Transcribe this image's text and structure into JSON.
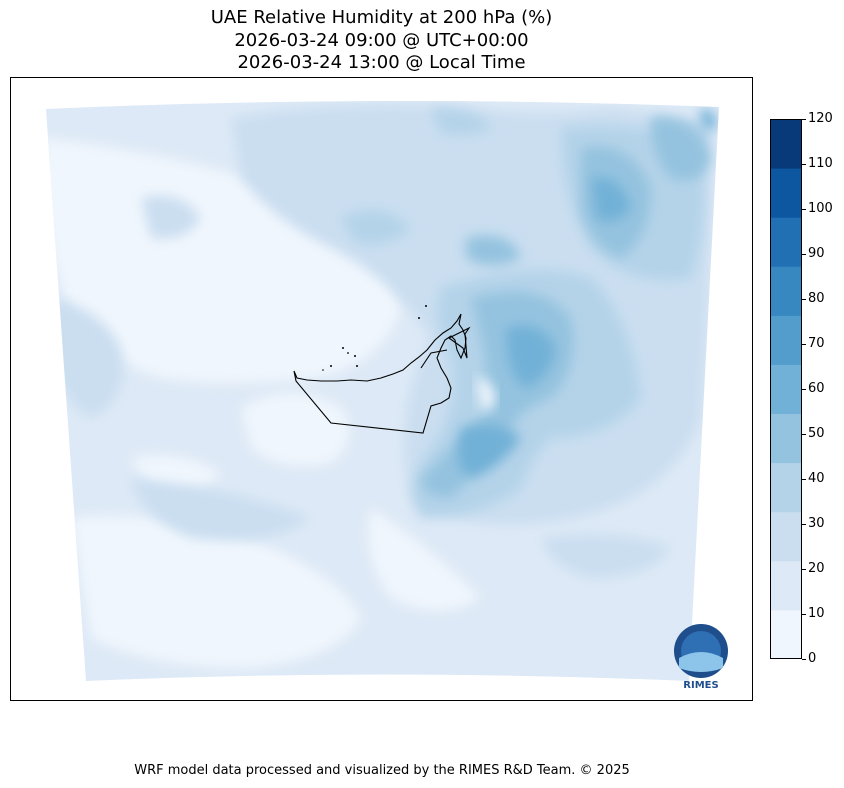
{
  "title": {
    "line1": "UAE Relative Humidity at 200 hPa (%)",
    "line2": "2026-03-24 09:00 @ UTC+00:00",
    "line3": "2026-03-24 13:00 @ Local Time"
  },
  "colorbar": {
    "levels": [
      0,
      10,
      20,
      30,
      40,
      50,
      60,
      70,
      80,
      90,
      100,
      110,
      120
    ],
    "colors": [
      "#f0f6fd",
      "#dde9f6",
      "#cadef0",
      "#b4d3e9",
      "#94c3df",
      "#72b1d7",
      "#529dcb",
      "#3788c0",
      "#2170b4",
      "#0c579f",
      "#083a7a"
    ],
    "tick_labels": [
      "0",
      "10",
      "20",
      "30",
      "40",
      "50",
      "60",
      "70",
      "80",
      "90",
      "100",
      "110",
      "120"
    ]
  },
  "logo": {
    "name": "RIMES",
    "icon": "rimes-logo-icon",
    "text": "RIMES"
  },
  "footer": "WRF model data processed and visualized by the RIMES R&D Team. © 2025"
}
